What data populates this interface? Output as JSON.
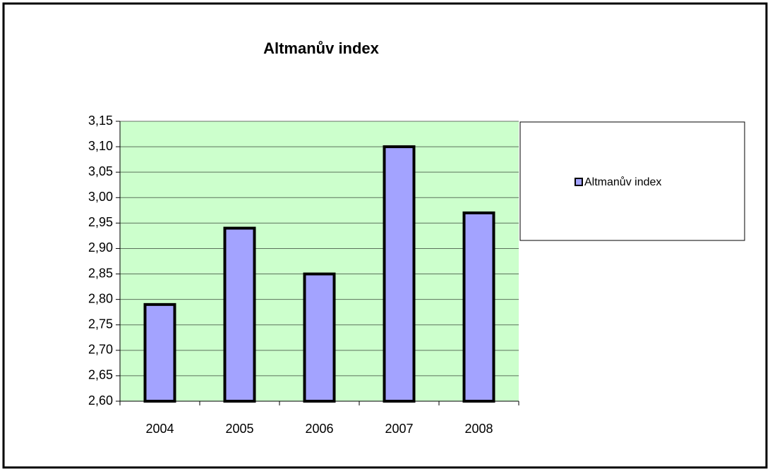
{
  "chart_data": {
    "type": "bar",
    "title": "Altmanův index",
    "categories": [
      "2004",
      "2005",
      "2006",
      "2007",
      "2008"
    ],
    "series": [
      {
        "name": "Altmanův index",
        "color": "#a3a3ff",
        "values": [
          2.79,
          2.94,
          2.85,
          3.1,
          2.97
        ]
      }
    ],
    "ylim": [
      2.6,
      3.15
    ],
    "yticks": [
      {
        "value": 2.6,
        "label": "2,60"
      },
      {
        "value": 2.65,
        "label": "2,65"
      },
      {
        "value": 2.7,
        "label": "2,70"
      },
      {
        "value": 2.75,
        "label": "2,75"
      },
      {
        "value": 2.8,
        "label": "2,80"
      },
      {
        "value": 2.85,
        "label": "2,85"
      },
      {
        "value": 2.9,
        "label": "2,90"
      },
      {
        "value": 2.95,
        "label": "2,95"
      },
      {
        "value": 3.0,
        "label": "3,00"
      },
      {
        "value": 3.05,
        "label": "3,05"
      },
      {
        "value": 3.1,
        "label": "3,10"
      },
      {
        "value": 3.15,
        "label": "3,15"
      }
    ],
    "grid": true,
    "legend": "right"
  }
}
